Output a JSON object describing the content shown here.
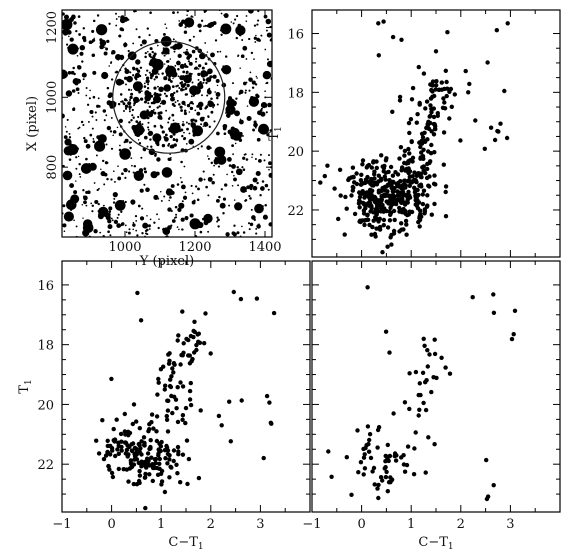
{
  "chart_data": [
    {
      "panel": "image",
      "type": "scatter",
      "xlabel": "Y (pixel)",
      "ylabel": "X (pixel)",
      "xlim": [
        820,
        1420
      ],
      "ylim": [
        600,
        1250
      ],
      "xticks": [
        1000,
        1200,
        1400
      ],
      "yticks": [
        800,
        1000,
        1200
      ],
      "circle": {
        "cx": 1125,
        "cy": 1000,
        "r": 160
      },
      "stars_note": "field stars (random positions)"
    },
    {
      "panel": "cmd-top-right",
      "type": "scatter",
      "xlabel": "",
      "ylabel": "T1",
      "xlim": [
        -1,
        4
      ],
      "ylim": [
        23.6,
        15.2
      ],
      "yticks": [
        16,
        18,
        20,
        22
      ],
      "groups": [
        {
          "kind": "clump",
          "cx": 0.5,
          "cy": 21.6,
          "sx": 0.45,
          "sy": 0.55,
          "n": 380
        },
        {
          "kind": "rgb",
          "x": [
            1.0,
            1.3,
            1.6
          ],
          "y": [
            21.0,
            19.5,
            17.5
          ],
          "spread": 0.18,
          "n": 120
        },
        {
          "kind": "sparse",
          "xlim": [
            0.3,
            3.2
          ],
          "ylim": [
            15.5,
            21.5
          ],
          "n": 35
        }
      ]
    },
    {
      "panel": "cmd-bottom-left",
      "type": "scatter",
      "xlabel": "C−T1",
      "ylabel": "T1",
      "xlim": [
        -1,
        4
      ],
      "ylim": [
        23.6,
        15.2
      ],
      "xticks": [
        -1,
        0,
        1,
        2,
        3
      ],
      "yticks": [
        16,
        18,
        20,
        22
      ],
      "groups": [
        {
          "kind": "clump",
          "cx": 0.6,
          "cy": 21.7,
          "sx": 0.35,
          "sy": 0.5,
          "n": 170
        },
        {
          "kind": "rgb",
          "x": [
            1.1,
            1.3,
            1.6
          ],
          "y": [
            20.5,
            19.2,
            17.5
          ],
          "spread": 0.2,
          "n": 70
        },
        {
          "kind": "sparse",
          "xlim": [
            -0.2,
            3.3
          ],
          "ylim": [
            15.4,
            22.8
          ],
          "n": 30
        }
      ]
    },
    {
      "panel": "cmd-bottom-right",
      "type": "scatter",
      "xlabel": "C−T1",
      "ylabel": "",
      "xlim": [
        -1,
        4
      ],
      "ylim": [
        23.6,
        15.2
      ],
      "xticks": [
        -1,
        0,
        1,
        2,
        3
      ],
      "groups": [
        {
          "kind": "clump",
          "cx": 0.5,
          "cy": 21.8,
          "sx": 0.4,
          "sy": 0.6,
          "n": 60
        },
        {
          "kind": "rgb",
          "x": [
            1.1,
            1.3,
            1.5
          ],
          "y": [
            20.5,
            19.3,
            17.8
          ],
          "spread": 0.15,
          "n": 25
        },
        {
          "kind": "sparse",
          "xlim": [
            0.0,
            3.2
          ],
          "ylim": [
            16.0,
            23.2
          ],
          "n": 20
        }
      ]
    }
  ]
}
